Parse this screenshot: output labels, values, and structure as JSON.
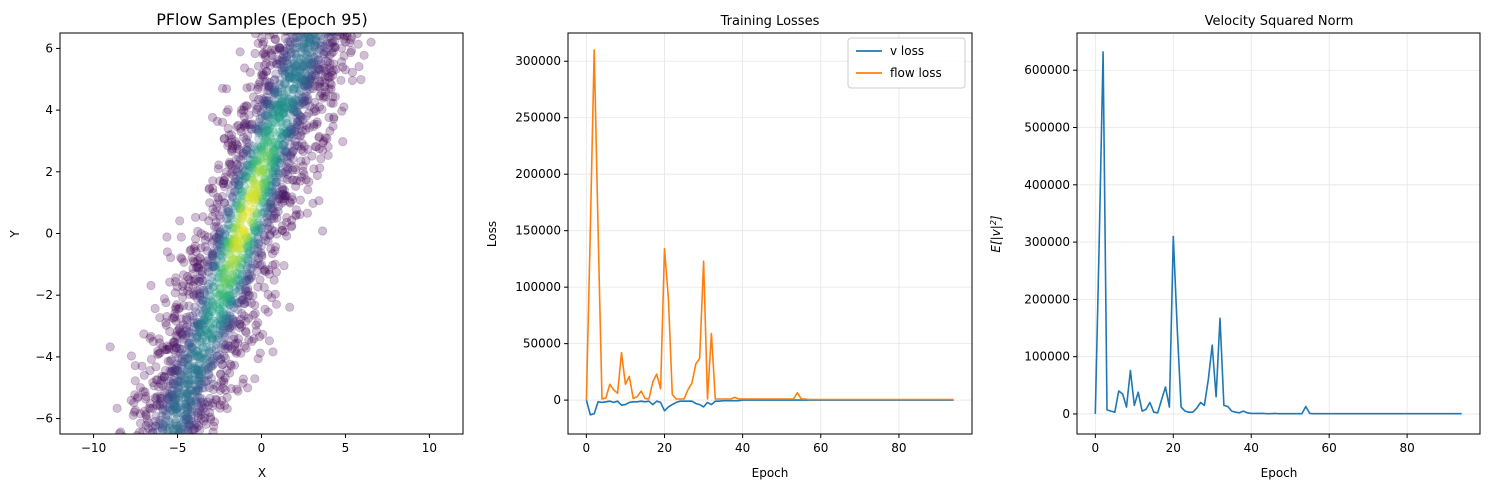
{
  "chart_data": [
    {
      "type": "scatter",
      "title": "PFlow Samples (Epoch 95)",
      "xlabel": "X",
      "ylabel": "Y",
      "xlim": [
        -12,
        12
      ],
      "ylim": [
        -6.5,
        6.5
      ],
      "xticks": [
        -10,
        -5,
        0,
        5,
        10
      ],
      "yticks": [
        -6,
        -4,
        -2,
        0,
        2,
        4,
        6
      ],
      "xtick_labels": [
        "−10",
        "−5",
        "0",
        "5",
        "10"
      ],
      "ytick_labels": [
        "−6",
        "−4",
        "−2",
        "0",
        "2",
        "4",
        "6"
      ],
      "grid": false,
      "colormap": "viridis",
      "marker_alpha": 0.25,
      "description_of_distribution": {
        "slope_dy_dx": 1.55,
        "x_center_at_y0": -1.2,
        "cross_spread_x": 2.6,
        "density_peak": [
          -1.2,
          2.6
        ]
      }
    },
    {
      "type": "line",
      "title": "Training Losses",
      "xlabel": "Epoch",
      "ylabel": "Loss",
      "xlim": [
        -4.7,
        98.7
      ],
      "ylim": [
        -30000,
        325000
      ],
      "xticks": [
        0,
        20,
        40,
        60,
        80
      ],
      "yticks": [
        0,
        50000,
        100000,
        150000,
        200000,
        250000,
        300000
      ],
      "xtick_labels": [
        "0",
        "20",
        "40",
        "60",
        "80"
      ],
      "ytick_labels": [
        "0",
        "50000",
        "100000",
        "150000",
        "200000",
        "250000",
        "300000"
      ],
      "grid": true,
      "legend_position": "top-right",
      "series": [
        {
          "name": "v loss",
          "color": "#1f77b4",
          "values": [
            0,
            -13000,
            -12000,
            -1500,
            -2000,
            -1500,
            -1000,
            -2000,
            -1000,
            -4500,
            -4000,
            -2000,
            -1500,
            -1500,
            -1000,
            -1500,
            -1000,
            -4000,
            -1000,
            -2000,
            -9500,
            -6000,
            -4000,
            -2000,
            -1000,
            -1000,
            -1000,
            -1000,
            -3000,
            -4000,
            -6000,
            -2000,
            -4000,
            -1000,
            -1000,
            -500,
            -500,
            -500,
            -500,
            -500,
            0,
            0,
            0,
            0,
            0,
            0,
            0,
            0,
            0,
            0,
            0,
            0,
            0,
            0,
            0,
            0,
            0,
            0,
            0,
            0,
            0,
            0,
            0,
            0,
            0,
            0,
            0,
            0,
            0,
            0,
            0,
            0,
            0,
            0,
            0,
            0,
            0,
            0,
            0,
            0,
            0,
            0,
            0,
            0,
            0,
            0,
            0,
            0,
            0,
            0,
            0,
            0,
            0,
            0,
            0
          ]
        },
        {
          "name": "flow loss",
          "color": "#ff7f0e",
          "values": [
            0,
            150000,
            310000,
            150000,
            1000,
            2000,
            14000,
            9000,
            6000,
            42000,
            14000,
            21000,
            1500,
            3000,
            8000,
            1500,
            1000,
            16000,
            23000,
            10000,
            134000,
            90000,
            5000,
            1000,
            1000,
            1000,
            9000,
            15000,
            32000,
            37000,
            123000,
            1000,
            59000,
            1000,
            1000,
            1000,
            1000,
            1000,
            2500,
            1000,
            1000,
            1000,
            1000,
            1000,
            1000,
            1000,
            1000,
            1000,
            1000,
            1000,
            1000,
            1000,
            1000,
            1000,
            6500,
            1000,
            1000,
            500,
            500,
            500,
            500,
            500,
            500,
            500,
            500,
            500,
            500,
            500,
            500,
            500,
            500,
            500,
            500,
            500,
            500,
            500,
            500,
            500,
            500,
            500,
            500,
            500,
            500,
            500,
            500,
            500,
            500,
            500,
            500,
            500,
            500,
            500,
            500,
            500,
            500
          ]
        }
      ]
    },
    {
      "type": "line",
      "title": "Velocity Squared Norm",
      "xlabel": "Epoch",
      "ylabel": "E[|v|²]",
      "ylabel_parts": {
        "pre": "E[|v|",
        "sup": "2",
        "post": "]"
      },
      "xlim": [
        -4.7,
        98.7
      ],
      "ylim": [
        -35000,
        665000
      ],
      "xticks": [
        0,
        20,
        40,
        60,
        80
      ],
      "yticks": [
        0,
        100000,
        200000,
        300000,
        400000,
        500000,
        600000
      ],
      "xtick_labels": [
        "0",
        "20",
        "40",
        "60",
        "80"
      ],
      "ytick_labels": [
        "0",
        "100000",
        "200000",
        "300000",
        "400000",
        "500000",
        "600000"
      ],
      "grid": true,
      "series": [
        {
          "name": "",
          "color": "#1f77b4",
          "values": [
            0,
            300000,
            632000,
            7000,
            5000,
            3000,
            40000,
            35000,
            12000,
            76000,
            15000,
            38000,
            5000,
            8000,
            20000,
            3000,
            2000,
            25000,
            47000,
            12000,
            310000,
            150000,
            12000,
            5000,
            3000,
            3000,
            10000,
            20000,
            15000,
            60000,
            120000,
            30000,
            167000,
            15000,
            13000,
            5000,
            3000,
            2000,
            5000,
            2000,
            1000,
            1000,
            1000,
            1000,
            500,
            500,
            1000,
            500,
            500,
            500,
            500,
            500,
            500,
            500,
            13000,
            1000,
            500,
            500,
            500,
            500,
            500,
            500,
            500,
            500,
            500,
            500,
            500,
            500,
            500,
            500,
            500,
            500,
            500,
            500,
            500,
            500,
            500,
            500,
            500,
            500,
            500,
            500,
            500,
            500,
            500,
            500,
            500,
            500,
            500,
            500,
            500,
            500,
            500,
            500,
            500
          ]
        }
      ]
    }
  ]
}
